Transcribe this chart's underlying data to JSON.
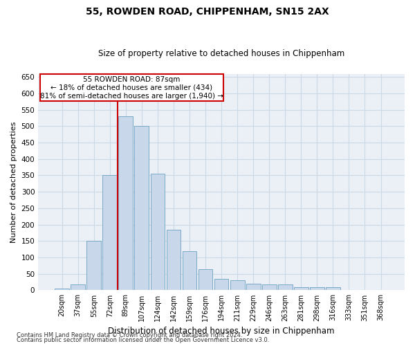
{
  "title1": "55, ROWDEN ROAD, CHIPPENHAM, SN15 2AX",
  "title2": "Size of property relative to detached houses in Chippenham",
  "xlabel": "Distribution of detached houses by size in Chippenham",
  "ylabel": "Number of detached properties",
  "categories": [
    "20sqm",
    "37sqm",
    "55sqm",
    "72sqm",
    "89sqm",
    "107sqm",
    "124sqm",
    "142sqm",
    "159sqm",
    "176sqm",
    "194sqm",
    "211sqm",
    "229sqm",
    "246sqm",
    "263sqm",
    "281sqm",
    "298sqm",
    "316sqm",
    "333sqm",
    "351sqm",
    "368sqm"
  ],
  "values": [
    5,
    18,
    150,
    350,
    530,
    500,
    355,
    185,
    120,
    65,
    35,
    30,
    20,
    18,
    18,
    10,
    10,
    10,
    0,
    0,
    0
  ],
  "bar_color": "#c8d8ea",
  "bar_edge_color": "#7aaac8",
  "vline_index": 4,
  "annotation_text1": "55 ROWDEN ROAD: 87sqm",
  "annotation_text2": "← 18% of detached houses are smaller (434)",
  "annotation_text3": "81% of semi-detached houses are larger (1,940) →",
  "vline_color": "#cc0000",
  "annotation_box_color": "#ffffff",
  "annotation_box_edge": "#cc0000",
  "footer1": "Contains HM Land Registry data © Crown copyright and database right 2024.",
  "footer2": "Contains public sector information licensed under the Open Government Licence v3.0.",
  "ylim": [
    0,
    660
  ],
  "yticks": [
    0,
    50,
    100,
    150,
    200,
    250,
    300,
    350,
    400,
    450,
    500,
    550,
    600,
    650
  ],
  "grid_color": "#ccd8e4",
  "bg_color": "#eaf0f6"
}
